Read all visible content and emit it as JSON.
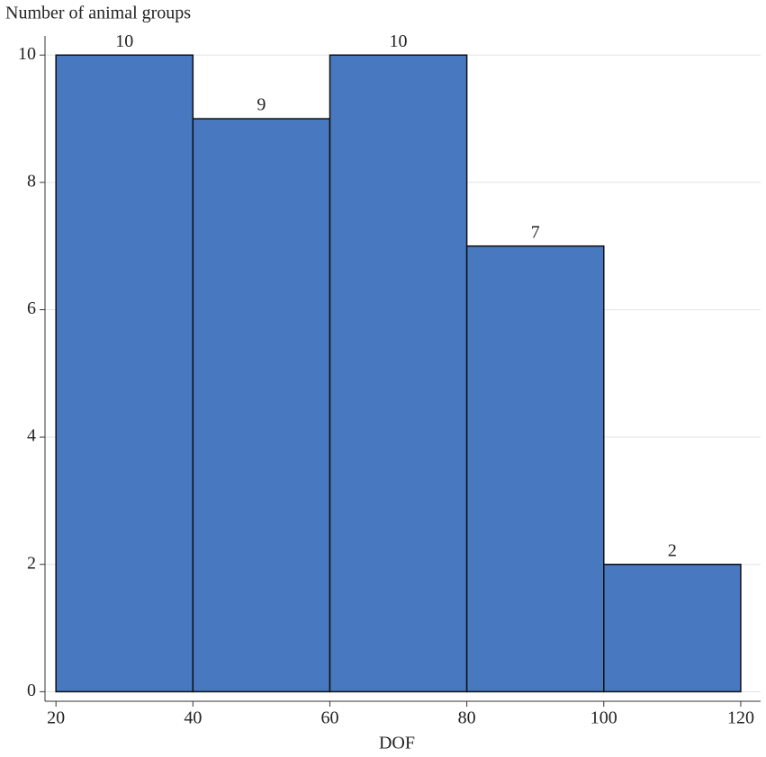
{
  "chart_data": {
    "type": "histogram",
    "y_label": "Number of animal groups",
    "x_label": "DOF",
    "bins": [
      20,
      40,
      60,
      80,
      100,
      120
    ],
    "values": [
      10,
      9,
      10,
      7,
      2
    ],
    "color": "#4878bf",
    "xlim": [
      18.4,
      122.9
    ],
    "ylim": [
      -0.15,
      10.3
    ],
    "xticks": [
      20,
      40,
      60,
      80,
      100,
      120
    ],
    "yticks": [
      0,
      2,
      4,
      6,
      8,
      10
    ],
    "grid": true
  }
}
